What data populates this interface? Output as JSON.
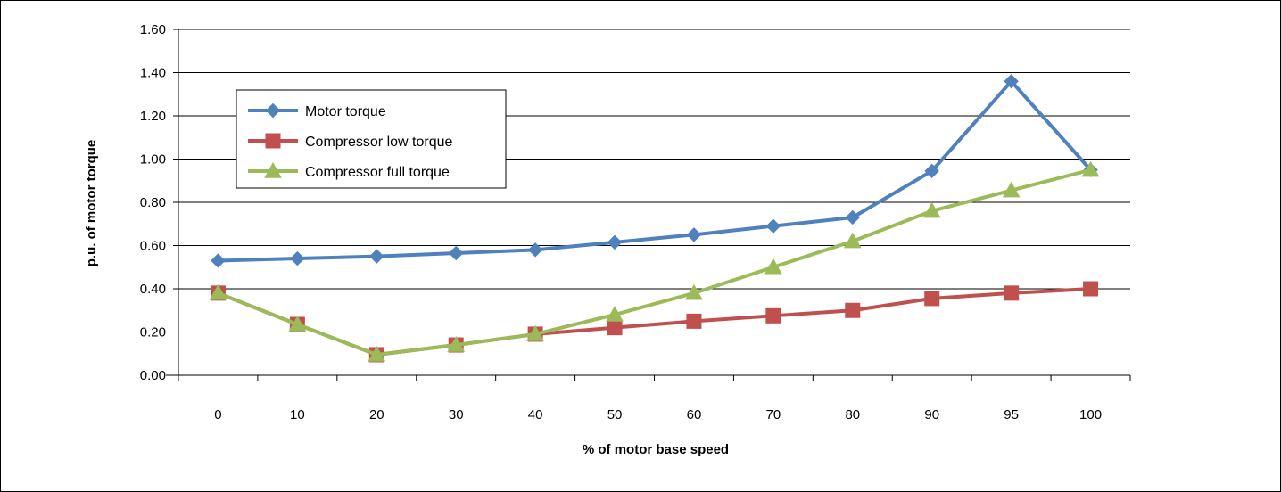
{
  "chart_data": {
    "type": "line",
    "title": "",
    "xlabel": "% of motor base speed",
    "ylabel": "p.u. of motor torque",
    "categories": [
      "0",
      "10",
      "20",
      "30",
      "40",
      "50",
      "60",
      "70",
      "80",
      "90",
      "95",
      "100"
    ],
    "ylim": [
      0,
      1.6
    ],
    "yticks": [
      "0.00",
      "0.20",
      "0.40",
      "0.60",
      "0.80",
      "1.00",
      "1.20",
      "1.40",
      "1.60"
    ],
    "grid": "horizontal",
    "legend_position": "top-left",
    "series": [
      {
        "name": "Motor torque",
        "color": "#4f81bd",
        "marker": "diamond",
        "values": [
          0.53,
          0.54,
          0.55,
          0.565,
          0.58,
          0.615,
          0.65,
          0.69,
          0.73,
          0.945,
          1.36,
          0.95
        ]
      },
      {
        "name": "Compressor low torque",
        "color": "#c0504d",
        "marker": "square",
        "values": [
          0.38,
          0.235,
          0.095,
          0.14,
          0.19,
          0.22,
          0.25,
          0.275,
          0.3,
          0.355,
          0.38,
          0.4
        ]
      },
      {
        "name": "Compressor full torque",
        "color": "#9bbb59",
        "marker": "triangle",
        "values": [
          0.38,
          0.235,
          0.095,
          0.14,
          0.19,
          0.28,
          0.38,
          0.5,
          0.62,
          0.76,
          0.855,
          0.95
        ]
      }
    ]
  }
}
